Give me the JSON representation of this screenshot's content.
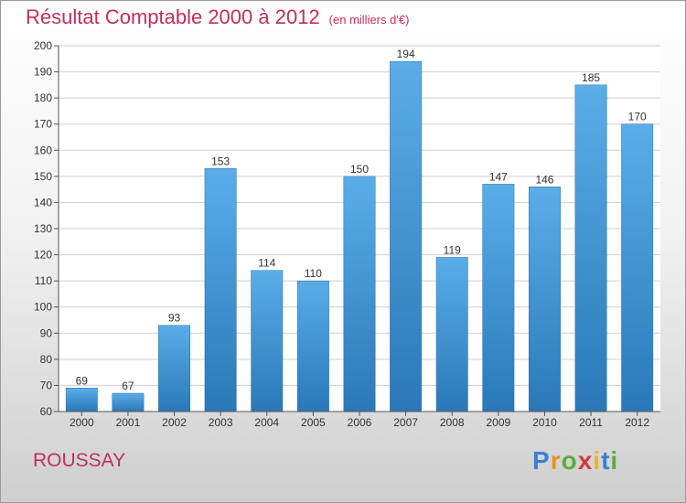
{
  "chart_data": {
    "type": "bar",
    "title": "Résultat Comptable 2000 à 2012",
    "subtitle": "(en milliers d'€)",
    "categories": [
      "2000",
      "2001",
      "2002",
      "2003",
      "2004",
      "2005",
      "2006",
      "2007",
      "2008",
      "2009",
      "2010",
      "2011",
      "2012"
    ],
    "values": [
      69,
      67,
      93,
      153,
      114,
      110,
      150,
      194,
      119,
      147,
      146,
      185,
      170
    ],
    "ylim": [
      60,
      200
    ],
    "yticks": [
      60,
      70,
      80,
      90,
      100,
      110,
      120,
      130,
      140,
      150,
      160,
      170,
      180,
      190,
      200
    ],
    "grid": true,
    "xlabel": "",
    "ylabel": "",
    "bar_color": "#3b8fd6"
  },
  "place_name": "ROUSSAY",
  "logo": {
    "letters": [
      "P",
      "r",
      "o",
      "x",
      "i",
      "t",
      "i"
    ],
    "colors": [
      "#3a7fd0",
      "#e8902a",
      "#5aae3a",
      "#d63a3a",
      "#e8b81a",
      "#3a7fd0",
      "#5aae3a"
    ]
  }
}
